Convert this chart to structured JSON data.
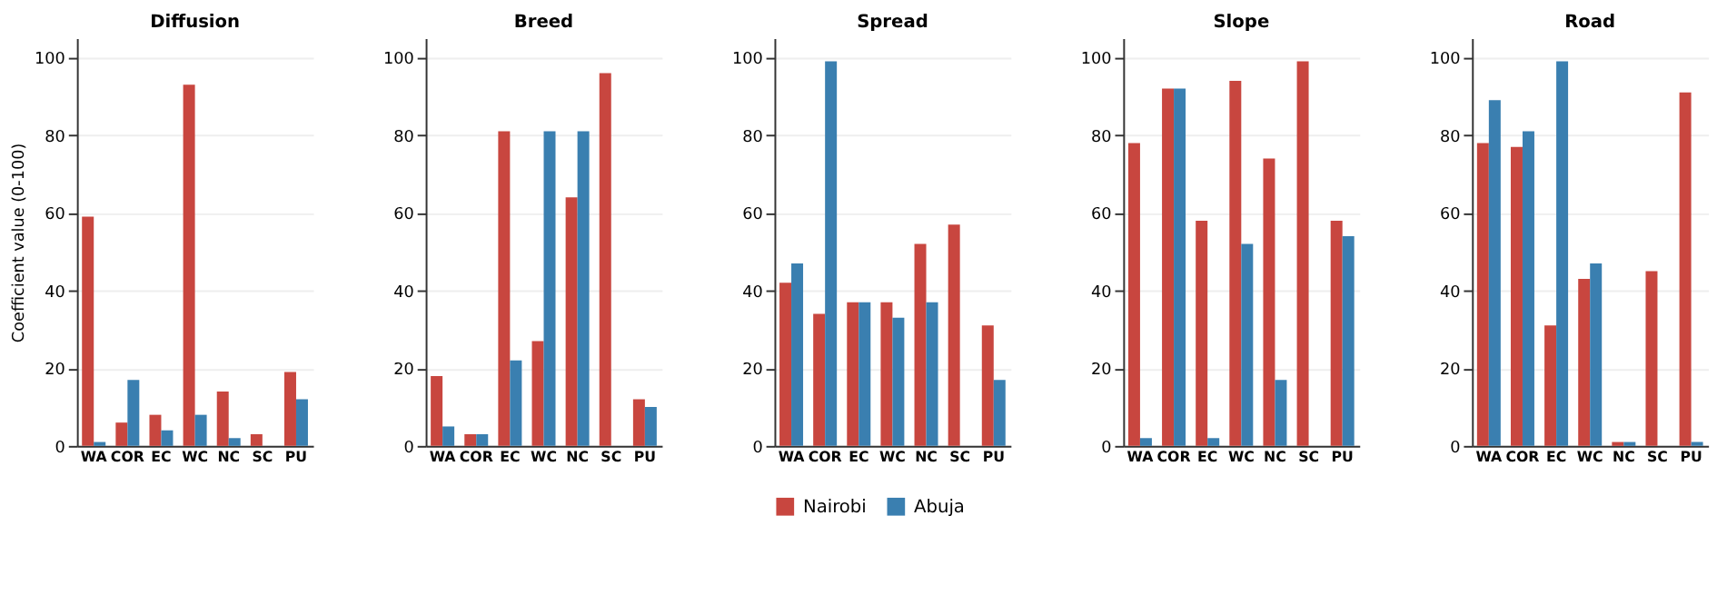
{
  "chart_data": [
    {
      "type": "bar",
      "title": "Diffusion",
      "ylabel": "Coefficient value (0-100)",
      "categories": [
        "WA",
        "COR",
        "EC",
        "WC",
        "NC",
        "SC",
        "PU"
      ],
      "series": [
        {
          "color": "#c8463f",
          "values": [
            59,
            6,
            8,
            93,
            14,
            3,
            19
          ]
        },
        {
          "color": "#3a7fb0",
          "values": [
            1,
            17,
            4,
            8,
            2,
            0,
            12
          ]
        }
      ],
      "ylim": [
        0,
        105
      ],
      "yticks": [
        0,
        20,
        40,
        60,
        80,
        100
      ],
      "grid": "y"
    },
    {
      "type": "bar",
      "title": "Breed",
      "categories": [
        "WA",
        "COR",
        "EC",
        "WC",
        "NC",
        "SC",
        "PU"
      ],
      "series": [
        {
          "color": "#c8463f",
          "values": [
            18,
            3,
            81,
            27,
            64,
            96,
            12
          ]
        },
        {
          "color": "#3a7fb0",
          "values": [
            5,
            3,
            22,
            81,
            81,
            0,
            10
          ]
        }
      ],
      "ylim": [
        0,
        105
      ],
      "yticks": [
        0,
        20,
        40,
        60,
        80,
        100
      ],
      "grid": "y"
    },
    {
      "type": "bar",
      "title": "Spread",
      "categories": [
        "WA",
        "COR",
        "EC",
        "WC",
        "NC",
        "SC",
        "PU"
      ],
      "series": [
        {
          "name": "Nairobi",
          "color": "#c8463f",
          "values": [
            42,
            34,
            37,
            37,
            52,
            57,
            31
          ]
        },
        {
          "name": "Abuja",
          "color": "#3a7fb0",
          "values": [
            47,
            99,
            37,
            33,
            37,
            0,
            17
          ]
        }
      ],
      "ylim": [
        0,
        105
      ],
      "yticks": [
        0,
        20,
        40,
        60,
        80,
        100
      ],
      "grid": "y",
      "legend": "bottom"
    },
    {
      "type": "bar",
      "title": "Slope",
      "categories": [
        "WA",
        "COR",
        "EC",
        "WC",
        "NC",
        "SC",
        "PU"
      ],
      "series": [
        {
          "color": "#c8463f",
          "values": [
            78,
            92,
            58,
            94,
            74,
            99,
            58
          ]
        },
        {
          "color": "#3a7fb0",
          "values": [
            2,
            92,
            2,
            52,
            17,
            0,
            54
          ]
        }
      ],
      "ylim": [
        0,
        105
      ],
      "yticks": [
        0,
        20,
        40,
        60,
        80,
        100
      ],
      "grid": "y"
    },
    {
      "type": "bar",
      "title": "Road",
      "categories": [
        "WA",
        "COR",
        "EC",
        "WC",
        "NC",
        "SC",
        "PU"
      ],
      "series": [
        {
          "color": "#c8463f",
          "values": [
            78,
            77,
            31,
            43,
            1,
            45,
            91
          ]
        },
        {
          "color": "#3a7fb0",
          "values": [
            89,
            81,
            99,
            47,
            1,
            0,
            1
          ]
        }
      ],
      "ylim": [
        0,
        105
      ],
      "yticks": [
        0,
        20,
        40,
        60,
        80,
        100
      ],
      "grid": "y"
    }
  ]
}
